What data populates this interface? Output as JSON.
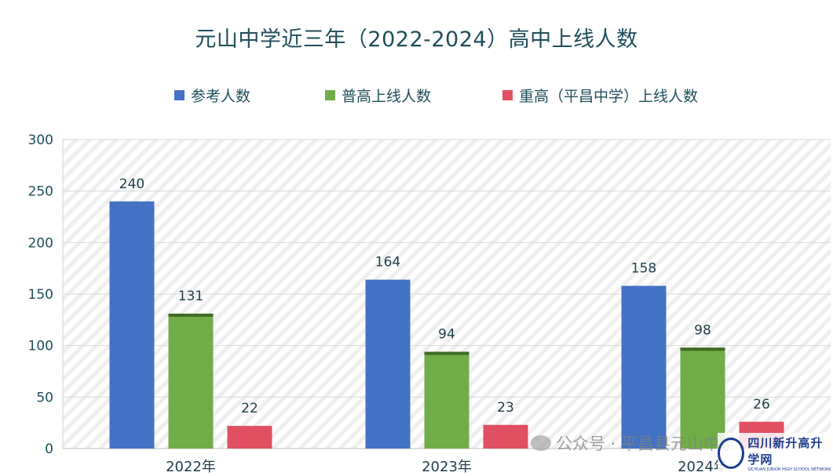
{
  "chart_data": {
    "type": "bar",
    "title": "元山中学近三年（2022-2024）高中上线人数",
    "categories": [
      "2022年",
      "2023年",
      "2024年"
    ],
    "series": [
      {
        "name": "参考人数",
        "color": "#4472c4",
        "values": [
          240,
          164,
          158
        ]
      },
      {
        "name": "普高上线人数",
        "color": "#70ad47",
        "values": [
          131,
          94,
          98
        ]
      },
      {
        "name": "重高（平昌中学）上线人数",
        "color": "#e05060",
        "values": [
          22,
          23,
          26
        ]
      }
    ],
    "ylim": [
      0,
      300
    ],
    "yticks": [
      0,
      50,
      100,
      150,
      200,
      250,
      300
    ],
    "xlabel": "",
    "ylabel": "",
    "grid": true,
    "legend_position": "top"
  },
  "watermark": {
    "text": "公众号 · 平昌县元山中学",
    "logo_text": "四川新升高升学网",
    "logo_subtext": "SICHUAN JUNIOR HIGH SCHOOL NETWORK"
  }
}
